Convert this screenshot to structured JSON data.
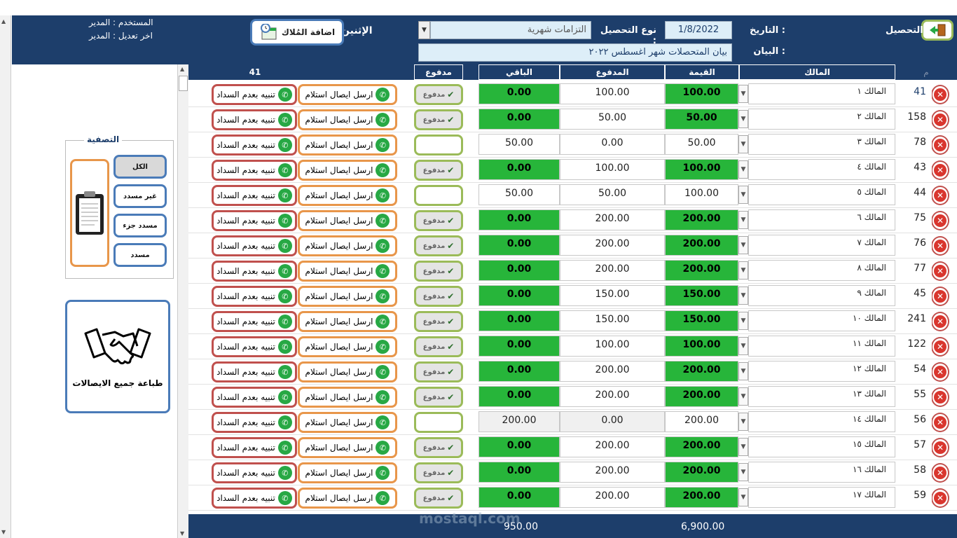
{
  "header": {
    "collection_label": "التحصيل",
    "date_label": "التاريخ :",
    "date_value": "1/8/2022",
    "type_label": "نوع التحصيل :",
    "type_value": "التزامات شهرية",
    "desc_label": "البيان :",
    "desc_value": "بيان المتحصلات شهر اغسطس ٢٠٢٢",
    "day_label": "الإثنين",
    "add_owners_label": "اضافة المُلاك",
    "user_line": "المستخدم : المدير",
    "last_edit_line": "اخر تعديل : المدير"
  },
  "sidebar": {
    "filter_title": "التصفية",
    "filter_all": "الكل",
    "filter_unpaid": "غير مسدد",
    "filter_partial": "مسدد جزء",
    "filter_paid": "مسدد",
    "print_all_label": "طباعة جميع الايصالات"
  },
  "table": {
    "col_num": "م",
    "col_owner": "المالك",
    "col_value": "القيمة",
    "col_paid": "المدفوع",
    "col_remaining": "الباقي",
    "col_status": "مدفوع",
    "count": "41",
    "paid_badge": "مدفوع",
    "send_receipt": "ارسل ايصال استلام",
    "warn_unpaid": "تنبيه بعدم السداد",
    "rows": [
      {
        "num": "41",
        "owner": "المالك ١",
        "value": "100.00",
        "paid": "100.00",
        "remaining": "0.00",
        "status": "paid"
      },
      {
        "num": "158",
        "owner": "المالك ٢",
        "value": "50.00",
        "paid": "50.00",
        "remaining": "0.00",
        "status": "paid"
      },
      {
        "num": "78",
        "owner": "المالك ٣",
        "value": "50.00",
        "paid": "0.00",
        "remaining": "50.00",
        "status": "unpaid"
      },
      {
        "num": "43",
        "owner": "المالك ٤",
        "value": "100.00",
        "paid": "100.00",
        "remaining": "0.00",
        "status": "paid"
      },
      {
        "num": "44",
        "owner": "المالك ٥",
        "value": "100.00",
        "paid": "50.00",
        "remaining": "50.00",
        "status": "unpaid"
      },
      {
        "num": "75",
        "owner": "المالك ٦",
        "value": "200.00",
        "paid": "200.00",
        "remaining": "0.00",
        "status": "paid"
      },
      {
        "num": "76",
        "owner": "المالك ٧",
        "value": "200.00",
        "paid": "200.00",
        "remaining": "0.00",
        "status": "paid"
      },
      {
        "num": "77",
        "owner": "المالك ٨",
        "value": "200.00",
        "paid": "200.00",
        "remaining": "0.00",
        "status": "paid"
      },
      {
        "num": "45",
        "owner": "المالك ٩",
        "value": "150.00",
        "paid": "150.00",
        "remaining": "0.00",
        "status": "paid"
      },
      {
        "num": "241",
        "owner": "المالك ١٠",
        "value": "150.00",
        "paid": "150.00",
        "remaining": "0.00",
        "status": "paid"
      },
      {
        "num": "122",
        "owner": "المالك ١١",
        "value": "100.00",
        "paid": "100.00",
        "remaining": "0.00",
        "status": "paid"
      },
      {
        "num": "54",
        "owner": "المالك ١٢",
        "value": "200.00",
        "paid": "200.00",
        "remaining": "0.00",
        "status": "paid"
      },
      {
        "num": "55",
        "owner": "المالك ١٣",
        "value": "200.00",
        "paid": "200.00",
        "remaining": "0.00",
        "status": "paid"
      },
      {
        "num": "56",
        "owner": "المالك ١٤",
        "value": "200.00",
        "paid": "0.00",
        "remaining": "200.00",
        "status": "unpaid"
      },
      {
        "num": "57",
        "owner": "المالك ١٥",
        "value": "200.00",
        "paid": "200.00",
        "remaining": "0.00",
        "status": "paid"
      },
      {
        "num": "58",
        "owner": "المالك ١٦",
        "value": "200.00",
        "paid": "200.00",
        "remaining": "0.00",
        "status": "paid"
      },
      {
        "num": "59",
        "owner": "المالك ١٧",
        "value": "200.00",
        "paid": "200.00",
        "remaining": "0.00",
        "status": "paid"
      }
    ]
  },
  "footer": {
    "total_remaining": "950.00",
    "total_value": "6,900.00"
  },
  "watermark": {
    "text": "mostaql.com"
  }
}
